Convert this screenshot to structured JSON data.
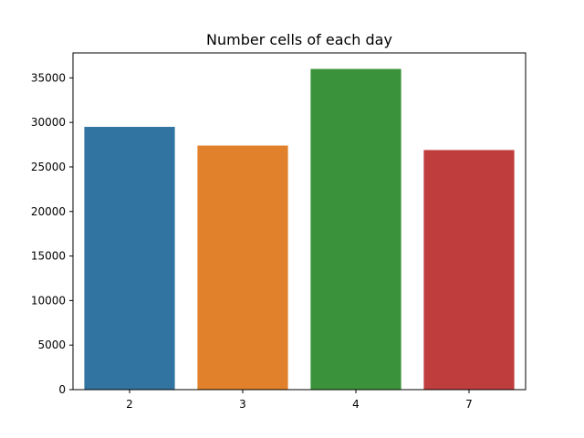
{
  "chart_data": {
    "type": "bar",
    "title": "Number cells of each day",
    "xlabel": "",
    "ylabel": "",
    "categories": [
      "2",
      "3",
      "4",
      "7"
    ],
    "values": [
      29500,
      27400,
      36000,
      26900
    ],
    "colors": [
      "#3274a1",
      "#e1812c",
      "#3a923a",
      "#c03d3e"
    ],
    "ylim": [
      0,
      37800
    ],
    "yticks": [
      0,
      5000,
      10000,
      15000,
      20000,
      25000,
      30000,
      35000
    ],
    "grid": false,
    "legend": "none"
  }
}
